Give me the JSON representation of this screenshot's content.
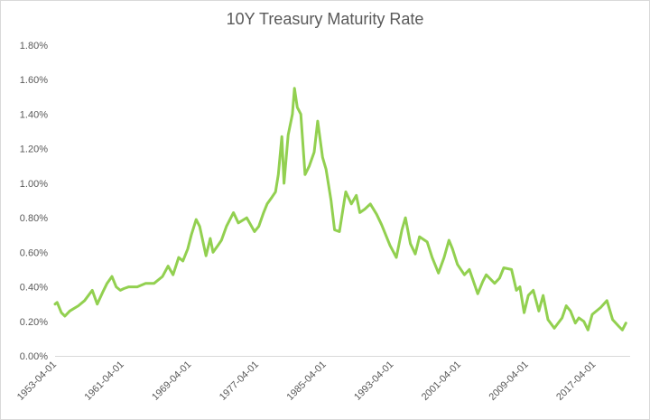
{
  "chart_data": {
    "type": "line",
    "title": "10Y Treasury Maturity Rate",
    "xlabel": "",
    "ylabel": "",
    "xlim": [
      1953.25,
      2021.5
    ],
    "ylim": [
      0,
      1.8
    ],
    "yticks": [
      "0.00%",
      "0.20%",
      "0.40%",
      "0.60%",
      "0.80%",
      "1.00%",
      "1.20%",
      "1.40%",
      "1.60%",
      "1.80%"
    ],
    "xticks": [
      "1953-04-01",
      "1961-04-01",
      "1969-04-01",
      "1977-04-01",
      "1985-04-01",
      "1993-04-01",
      "2001-04-01",
      "2009-04-01",
      "2017-04-01"
    ],
    "grid": "none",
    "legend": "none",
    "line_color": "#92d050",
    "series": [
      {
        "x": [
          "1953-04-01",
          "1953-07-01",
          "1954-01-01",
          "1954-06-01",
          "1955-01-01",
          "1956-01-01",
          "1956-10-01",
          "1957-09-01",
          "1958-04-01",
          "1958-12-01",
          "1959-06-01",
          "1960-01-01",
          "1960-07-01",
          "1961-01-01",
          "1961-06-01",
          "1962-01-01",
          "1963-01-01",
          "1964-01-01",
          "1965-01-01",
          "1966-01-01",
          "1966-09-01",
          "1967-04-01",
          "1967-12-01",
          "1968-06-01",
          "1969-01-01",
          "1969-06-01",
          "1970-01-01",
          "1970-06-01",
          "1971-03-01",
          "1971-09-01",
          "1972-01-01",
          "1972-08-01",
          "1973-01-01",
          "1973-08-01",
          "1974-06-01",
          "1975-01-01",
          "1976-01-01",
          "1976-12-01",
          "1977-06-01",
          "1978-01-01",
          "1978-06-01",
          "1979-01-01",
          "1979-06-01",
          "1979-10-01",
          "1980-03-01",
          "1980-06-01",
          "1980-12-01",
          "1981-06-01",
          "1981-09-01",
          "1982-01-01",
          "1982-06-01",
          "1982-12-01",
          "1983-06-01",
          "1984-01-01",
          "1984-06-01",
          "1985-01-01",
          "1985-06-01",
          "1986-01-01",
          "1986-06-01",
          "1987-01-01",
          "1987-06-01",
          "1987-10-01",
          "1988-06-01",
          "1989-01-01",
          "1989-06-01",
          "1990-01-01",
          "1990-09-01",
          "1991-06-01",
          "1992-01-01",
          "1993-01-01",
          "1993-10-01",
          "1994-06-01",
          "1994-11-01",
          "1995-06-01",
          "1996-01-01",
          "1996-07-01",
          "1997-06-01",
          "1998-01-01",
          "1998-10-01",
          "1999-06-01",
          "2000-01-01",
          "2000-06-01",
          "2001-01-01",
          "2001-11-01",
          "2002-06-01",
          "2003-06-01",
          "2004-01-01",
          "2004-06-01",
          "2005-06-01",
          "2006-01-01",
          "2006-07-01",
          "2007-06-01",
          "2008-01-01",
          "2008-06-01",
          "2008-12-01",
          "2009-06-01",
          "2010-01-01",
          "2010-09-01",
          "2011-03-01",
          "2011-10-01",
          "2012-07-01",
          "2013-06-01",
          "2013-12-01",
          "2014-06-01",
          "2015-01-01",
          "2015-06-01",
          "2016-01-01",
          "2016-07-01",
          "2017-01-01",
          "2018-01-01",
          "2018-10-01",
          "2019-06-01",
          "2020-03-01",
          "2020-08-01",
          "2021-01-01"
        ],
        "values": [
          0.3,
          0.31,
          0.25,
          0.23,
          0.26,
          0.29,
          0.32,
          0.38,
          0.3,
          0.37,
          0.42,
          0.46,
          0.4,
          0.38,
          0.39,
          0.4,
          0.4,
          0.42,
          0.42,
          0.46,
          0.52,
          0.47,
          0.57,
          0.55,
          0.62,
          0.7,
          0.79,
          0.75,
          0.58,
          0.68,
          0.6,
          0.64,
          0.67,
          0.75,
          0.83,
          0.77,
          0.8,
          0.72,
          0.75,
          0.83,
          0.88,
          0.92,
          0.95,
          1.05,
          1.27,
          1.0,
          1.28,
          1.4,
          1.55,
          1.44,
          1.4,
          1.05,
          1.1,
          1.18,
          1.36,
          1.15,
          1.08,
          0.9,
          0.73,
          0.72,
          0.85,
          0.95,
          0.88,
          0.93,
          0.83,
          0.85,
          0.88,
          0.82,
          0.76,
          0.64,
          0.57,
          0.73,
          0.8,
          0.65,
          0.59,
          0.69,
          0.66,
          0.57,
          0.48,
          0.57,
          0.67,
          0.62,
          0.53,
          0.47,
          0.5,
          0.36,
          0.43,
          0.47,
          0.42,
          0.45,
          0.51,
          0.5,
          0.38,
          0.4,
          0.25,
          0.35,
          0.38,
          0.26,
          0.35,
          0.21,
          0.16,
          0.22,
          0.29,
          0.26,
          0.19,
          0.22,
          0.2,
          0.15,
          0.24,
          0.28,
          0.32,
          0.21,
          0.17,
          0.15,
          0.19
        ]
      }
    ]
  }
}
